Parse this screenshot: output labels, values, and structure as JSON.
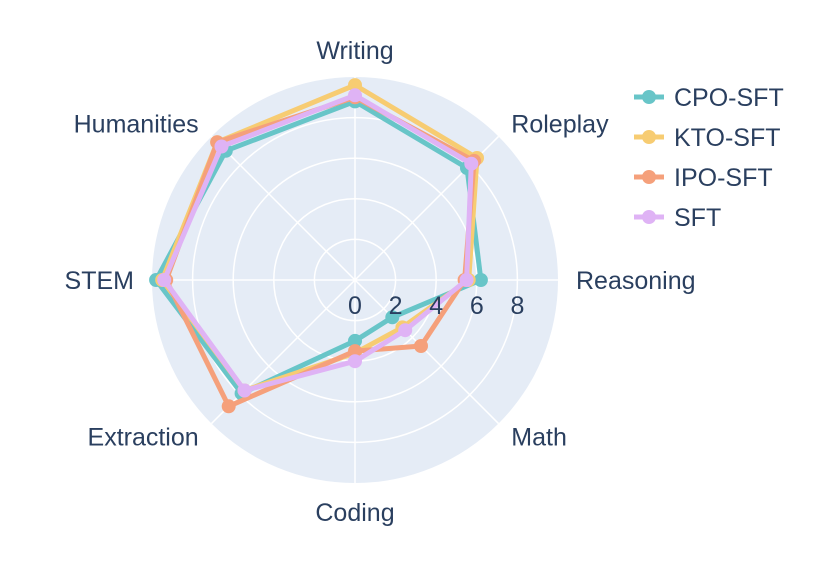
{
  "chart_data": {
    "type": "radar",
    "categories": [
      "Writing",
      "Roleplay",
      "Reasoning",
      "Math",
      "Coding",
      "Extraction",
      "STEM",
      "Humanities"
    ],
    "radial_range": [
      0,
      10
    ],
    "radial_ticks": [
      0,
      2,
      4,
      6,
      8
    ],
    "series": [
      {
        "name": "CPO-SFT",
        "color": "#68c5c8",
        "values": [
          8.8,
          7.8,
          6.2,
          2.6,
          3.0,
          7.9,
          9.8,
          9.0
        ]
      },
      {
        "name": "KTO-SFT",
        "color": "#f7cc72",
        "values": [
          9.6,
          8.5,
          5.6,
          3.3,
          3.6,
          7.7,
          9.5,
          9.6
        ]
      },
      {
        "name": "IPO-SFT",
        "color": "#f5a07b",
        "values": [
          9.0,
          8.3,
          5.4,
          4.6,
          3.5,
          8.8,
          9.3,
          9.6
        ]
      },
      {
        "name": "SFT",
        "color": "#dfb3f5",
        "values": [
          9.1,
          8.1,
          5.5,
          3.5,
          4.0,
          7.7,
          9.4,
          9.3
        ]
      }
    ]
  }
}
